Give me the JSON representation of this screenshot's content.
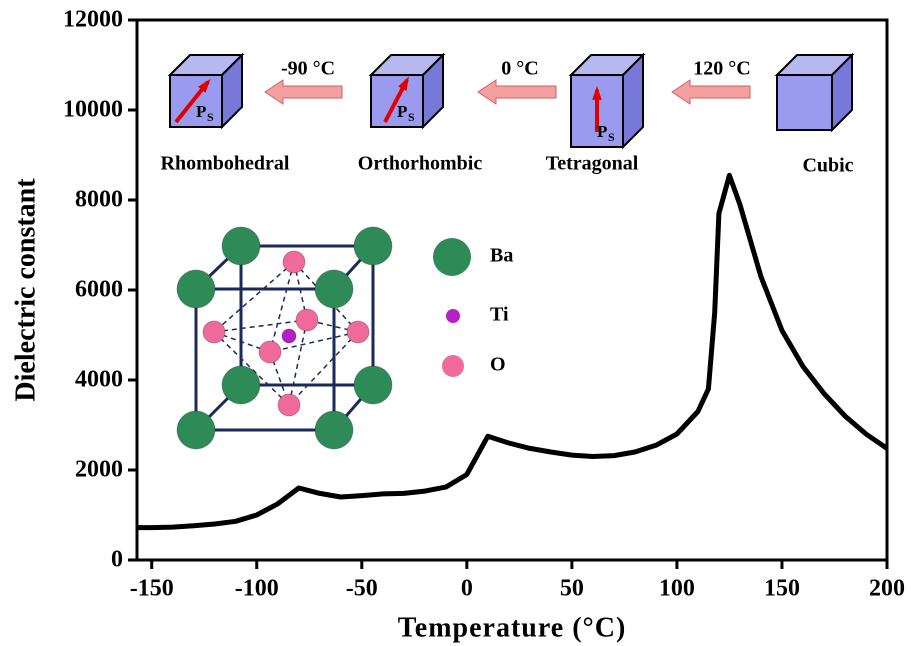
{
  "chart_data": {
    "type": "line",
    "x_label": "Temperature (°C)",
    "y_label": "Dielectric constant",
    "x": [
      -157,
      -150,
      -140,
      -130,
      -120,
      -110,
      -100,
      -90,
      -80,
      -70,
      -60,
      -50,
      -40,
      -30,
      -20,
      -10,
      0,
      10,
      20,
      30,
      40,
      50,
      60,
      70,
      80,
      90,
      100,
      110,
      115,
      118,
      120,
      125,
      130,
      140,
      150,
      160,
      170,
      180,
      190,
      200
    ],
    "values": [
      720,
      720,
      730,
      760,
      800,
      860,
      1000,
      1250,
      1600,
      1480,
      1400,
      1430,
      1470,
      1480,
      1530,
      1620,
      1900,
      2750,
      2600,
      2480,
      2400,
      2330,
      2300,
      2320,
      2400,
      2550,
      2800,
      3300,
      3800,
      5500,
      7700,
      8550,
      7900,
      6300,
      5100,
      4300,
      3700,
      3200,
      2800,
      2480
    ],
    "color": "#000000",
    "xlim": [
      -157,
      200
    ],
    "ylim": [
      0,
      12000
    ],
    "xticks": [
      -150,
      -100,
      -50,
      0,
      50,
      100,
      150,
      200
    ],
    "yticks": [
      0,
      2000,
      4000,
      6000,
      8000,
      10000,
      12000
    ],
    "phases": [
      "Rhombohedral",
      "Orthorhombic",
      "Tetragonal",
      "Cubic"
    ],
    "transitions": [
      "-90 °C",
      "0 °C",
      "120 °C"
    ],
    "polarization": {
      "symbol": "P",
      "subscript": "S"
    },
    "atoms": [
      {
        "name": "Ba",
        "color": "#2e8b57"
      },
      {
        "name": "Ti",
        "color": "#b41fc8"
      },
      {
        "name": "O",
        "color": "#f06a9a"
      }
    ]
  }
}
